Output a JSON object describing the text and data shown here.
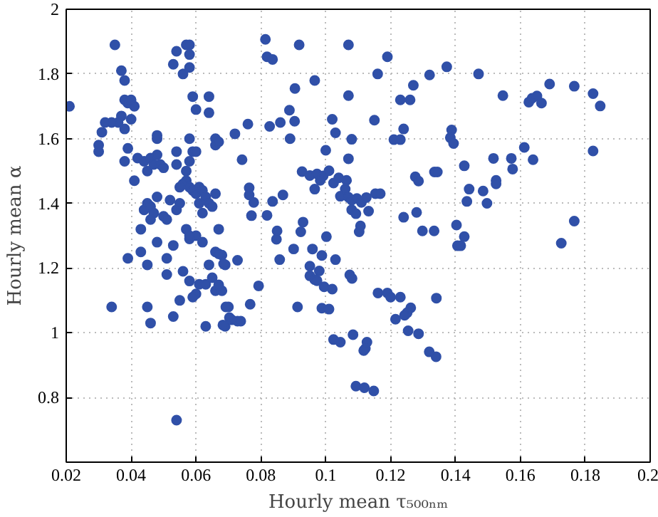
{
  "chart_data": {
    "type": "scatter",
    "xlabel": "Hourly mean τ₅₀₀ₙₘ",
    "ylabel": "Hourly mean α",
    "xlim": [
      0.02,
      0.2
    ],
    "ylim": [
      0.6,
      2
    ],
    "xticks": [
      0.02,
      0.04,
      0.06,
      0.08,
      0.1,
      0.12,
      0.14,
      0.16,
      0.18,
      0.2
    ],
    "yticks": [
      0.8,
      1,
      1.2,
      1.4,
      1.6,
      1.8,
      2
    ],
    "grid": true,
    "marker": "circle",
    "series": [
      {
        "color": "#3050a8",
        "x": [
          0.021,
          0.035,
          0.037,
          0.038,
          0.038,
          0.039,
          0.04,
          0.041,
          0.04,
          0.037,
          0.036,
          0.034,
          0.032,
          0.031,
          0.03,
          0.03,
          0.038,
          0.039,
          0.038,
          0.041,
          0.042,
          0.044,
          0.045,
          0.046,
          0.047,
          0.048,
          0.049,
          0.05,
          0.048,
          0.048,
          0.053,
          0.054,
          0.056,
          0.057,
          0.058,
          0.058,
          0.058,
          0.059,
          0.06,
          0.064,
          0.064,
          0.066,
          0.066,
          0.067,
          0.054,
          0.054,
          0.058,
          0.059,
          0.06,
          0.058,
          0.057,
          0.057,
          0.056,
          0.055,
          0.058,
          0.059,
          0.06,
          0.061,
          0.062,
          0.063,
          0.064,
          0.065,
          0.066,
          0.061,
          0.062,
          0.06,
          0.058,
          0.067,
          0.045,
          0.044,
          0.046,
          0.047,
          0.046,
          0.048,
          0.05,
          0.051,
          0.052,
          0.054,
          0.055,
          0.043,
          0.048,
          0.053,
          0.057,
          0.058,
          0.062,
          0.043,
          0.039,
          0.045,
          0.051,
          0.051,
          0.056,
          0.058,
          0.061,
          0.063,
          0.064,
          0.066,
          0.068,
          0.065,
          0.066,
          0.068,
          0.069,
          0.06,
          0.059,
          0.055,
          0.034,
          0.045,
          0.046,
          0.053,
          0.063,
          0.069,
          0.07,
          0.071,
          0.054,
          0.0814,
          0.0819,
          0.0836,
          0.0918,
          0.107,
          0.119,
          0.116,
          0.132,
          0.0966,
          0.0905,
          0.107,
          0.127,
          0.123,
          0.126,
          0.0888,
          0.0904,
          0.086,
          0.0827,
          0.076,
          0.072,
          0.089,
          0.102,
          0.103,
          0.108,
          0.115,
          0.124,
          0.121,
          0.123,
          0.1,
          0.0742,
          0.107,
          0.0927,
          0.0951,
          0.0973,
          0.0992,
          0.101,
          0.0983,
          0.0966,
          0.1024,
          0.104,
          0.1064,
          0.106,
          0.1045,
          0.107,
          0.108,
          0.1096,
          0.111,
          0.1125,
          0.108,
          0.1093,
          0.1132,
          0.1153,
          0.1168,
          0.0764,
          0.0764,
          0.0778,
          0.0836,
          0.0868,
          0.0771,
          0.0819,
          0.1276,
          0.1286,
          0.1335,
          0.124,
          0.128,
          0.1298,
          0.1334,
          0.093,
          0.0923,
          0.085,
          0.1103,
          0.1107,
          0.1002,
          0.0848,
          0.067,
          0.0685,
          0.0728,
          0.0858,
          0.0901,
          0.0959,
          0.0988,
          0.103,
          0.0951,
          0.098,
          0.0951,
          0.0966,
          0.0973,
          0.0995,
          0.102,
          0.1074,
          0.1081,
          0.0793,
          0.067,
          0.0692,
          0.0703,
          0.0728,
          0.0738,
          0.0683,
          0.0767,
          0.0913,
          0.0988,
          0.101,
          0.1161,
          0.119,
          0.12,
          0.123,
          0.1262,
          0.1251,
          0.1243,
          0.1215,
          0.1254,
          0.1286,
          0.1341,
          0.1024,
          0.1045,
          0.1084,
          0.1127,
          0.1122,
          0.1117,
          0.1319,
          0.134,
          0.1093,
          0.1119,
          0.1148,
          0.1373,
          0.1471,
          0.1546,
          0.1626,
          0.1636,
          0.1651,
          0.1665,
          0.169,
          0.1766,
          0.1824,
          0.1846,
          0.1388,
          0.1384,
          0.1394,
          0.1612,
          0.1824,
          0.1427,
          0.1517,
          0.1572,
          0.1576,
          0.1639,
          0.1344,
          0.1525,
          0.1525,
          0.1442,
          0.1485,
          0.1435,
          0.1497,
          0.1766,
          0.1403,
          0.1427,
          0.1406,
          0.1416,
          0.1726
        ],
        "values": [
          1.7,
          1.89,
          1.81,
          1.78,
          1.72,
          1.71,
          1.72,
          1.7,
          1.66,
          1.67,
          1.65,
          1.65,
          1.65,
          1.62,
          1.58,
          1.56,
          1.63,
          1.57,
          1.53,
          1.47,
          1.54,
          1.53,
          1.5,
          1.54,
          1.52,
          1.55,
          1.52,
          1.51,
          1.6,
          1.61,
          1.83,
          1.87,
          1.8,
          1.89,
          1.89,
          1.86,
          1.82,
          1.73,
          1.69,
          1.73,
          1.68,
          1.6,
          1.58,
          1.59,
          1.56,
          1.52,
          1.6,
          1.56,
          1.56,
          1.53,
          1.5,
          1.47,
          1.46,
          1.45,
          1.45,
          1.44,
          1.43,
          1.45,
          1.44,
          1.42,
          1.4,
          1.39,
          1.43,
          1.4,
          1.37,
          1.3,
          1.29,
          1.32,
          1.4,
          1.38,
          1.39,
          1.37,
          1.35,
          1.42,
          1.36,
          1.35,
          1.41,
          1.38,
          1.4,
          1.32,
          1.28,
          1.27,
          1.32,
          1.3,
          1.28,
          1.25,
          1.23,
          1.21,
          1.23,
          1.18,
          1.19,
          1.16,
          1.15,
          1.15,
          1.21,
          1.25,
          1.24,
          1.17,
          1.13,
          1.13,
          1.21,
          1.12,
          1.11,
          1.1,
          1.08,
          1.08,
          1.03,
          1.05,
          1.02,
          1.02,
          1.08,
          1.04,
          0.73,
          1.907,
          1.853,
          1.845,
          1.89,
          1.89,
          1.853,
          1.8,
          1.797,
          1.78,
          1.755,
          1.733,
          1.765,
          1.72,
          1.72,
          1.688,
          1.654,
          1.65,
          1.638,
          1.645,
          1.615,
          1.6,
          1.66,
          1.618,
          1.598,
          1.657,
          1.63,
          1.597,
          1.597,
          1.564,
          1.535,
          1.538,
          1.498,
          1.486,
          1.491,
          1.485,
          1.501,
          1.471,
          1.444,
          1.463,
          1.479,
          1.471,
          1.444,
          1.422,
          1.419,
          1.41,
          1.415,
          1.403,
          1.418,
          1.38,
          1.368,
          1.376,
          1.43,
          1.43,
          1.448,
          1.426,
          1.403,
          1.406,
          1.426,
          1.362,
          1.363,
          1.482,
          1.469,
          1.497,
          1.357,
          1.372,
          1.315,
          1.315,
          1.342,
          1.312,
          1.315,
          1.312,
          1.33,
          1.297,
          1.289,
          1.244,
          1.213,
          1.224,
          1.226,
          1.259,
          1.259,
          1.239,
          1.226,
          1.206,
          1.191,
          1.176,
          1.164,
          1.161,
          1.142,
          1.135,
          1.179,
          1.168,
          1.145,
          1.148,
          1.08,
          1.047,
          1.036,
          1.036,
          1.024,
          1.088,
          1.08,
          1.076,
          1.073,
          1.123,
          1.123,
          1.11,
          1.11,
          1.077,
          1.062,
          1.054,
          1.042,
          1.006,
          0.997,
          1.107,
          0.979,
          0.971,
          0.994,
          0.971,
          0.951,
          0.945,
          0.941,
          0.926,
          0.835,
          0.83,
          0.82,
          1.822,
          1.8,
          1.733,
          1.713,
          1.725,
          1.732,
          1.71,
          1.769,
          1.762,
          1.739,
          1.701,
          1.627,
          1.603,
          1.585,
          1.573,
          1.562,
          1.516,
          1.539,
          1.539,
          1.506,
          1.535,
          1.497,
          1.471,
          1.46,
          1.444,
          1.438,
          1.406,
          1.4,
          1.345,
          1.333,
          1.297,
          1.269,
          1.269,
          1.277
        ]
      }
    ]
  }
}
